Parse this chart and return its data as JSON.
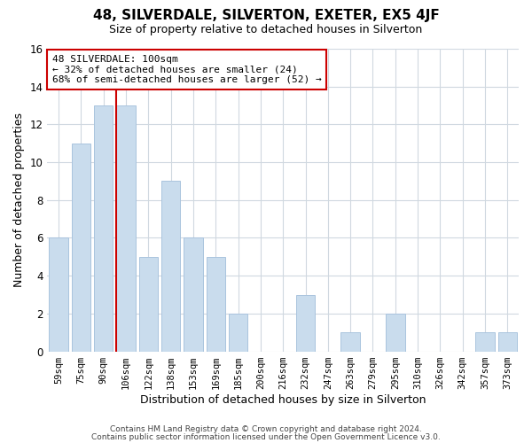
{
  "title": "48, SILVERDALE, SILVERTON, EXETER, EX5 4JF",
  "subtitle": "Size of property relative to detached houses in Silverton",
  "xlabel": "Distribution of detached houses by size in Silverton",
  "ylabel": "Number of detached properties",
  "footer_line1": "Contains HM Land Registry data © Crown copyright and database right 2024.",
  "footer_line2": "Contains public sector information licensed under the Open Government Licence v3.0.",
  "categories": [
    "59sqm",
    "75sqm",
    "90sqm",
    "106sqm",
    "122sqm",
    "138sqm",
    "153sqm",
    "169sqm",
    "185sqm",
    "200sqm",
    "216sqm",
    "232sqm",
    "247sqm",
    "263sqm",
    "279sqm",
    "295sqm",
    "310sqm",
    "326sqm",
    "342sqm",
    "357sqm",
    "373sqm"
  ],
  "values": [
    6,
    11,
    13,
    13,
    5,
    9,
    6,
    5,
    2,
    0,
    0,
    3,
    0,
    1,
    0,
    2,
    0,
    0,
    0,
    1,
    1
  ],
  "bar_color": "#c9dced",
  "bar_edge_color": "#aac4de",
  "vline_color": "#cc0000",
  "vline_index": 3,
  "annotation_title": "48 SILVERDALE: 100sqm",
  "annotation_line1": "← 32% of detached houses are smaller (24)",
  "annotation_line2": "68% of semi-detached houses are larger (52) →",
  "annotation_box_color": "#ffffff",
  "annotation_border_color": "#cc0000",
  "ylim": [
    0,
    16
  ],
  "yticks": [
    0,
    2,
    4,
    6,
    8,
    10,
    12,
    14,
    16
  ],
  "grid_color": "#d0d8e0",
  "background_color": "#ffffff",
  "figsize": [
    6.0,
    5.0
  ],
  "dpi": 100
}
